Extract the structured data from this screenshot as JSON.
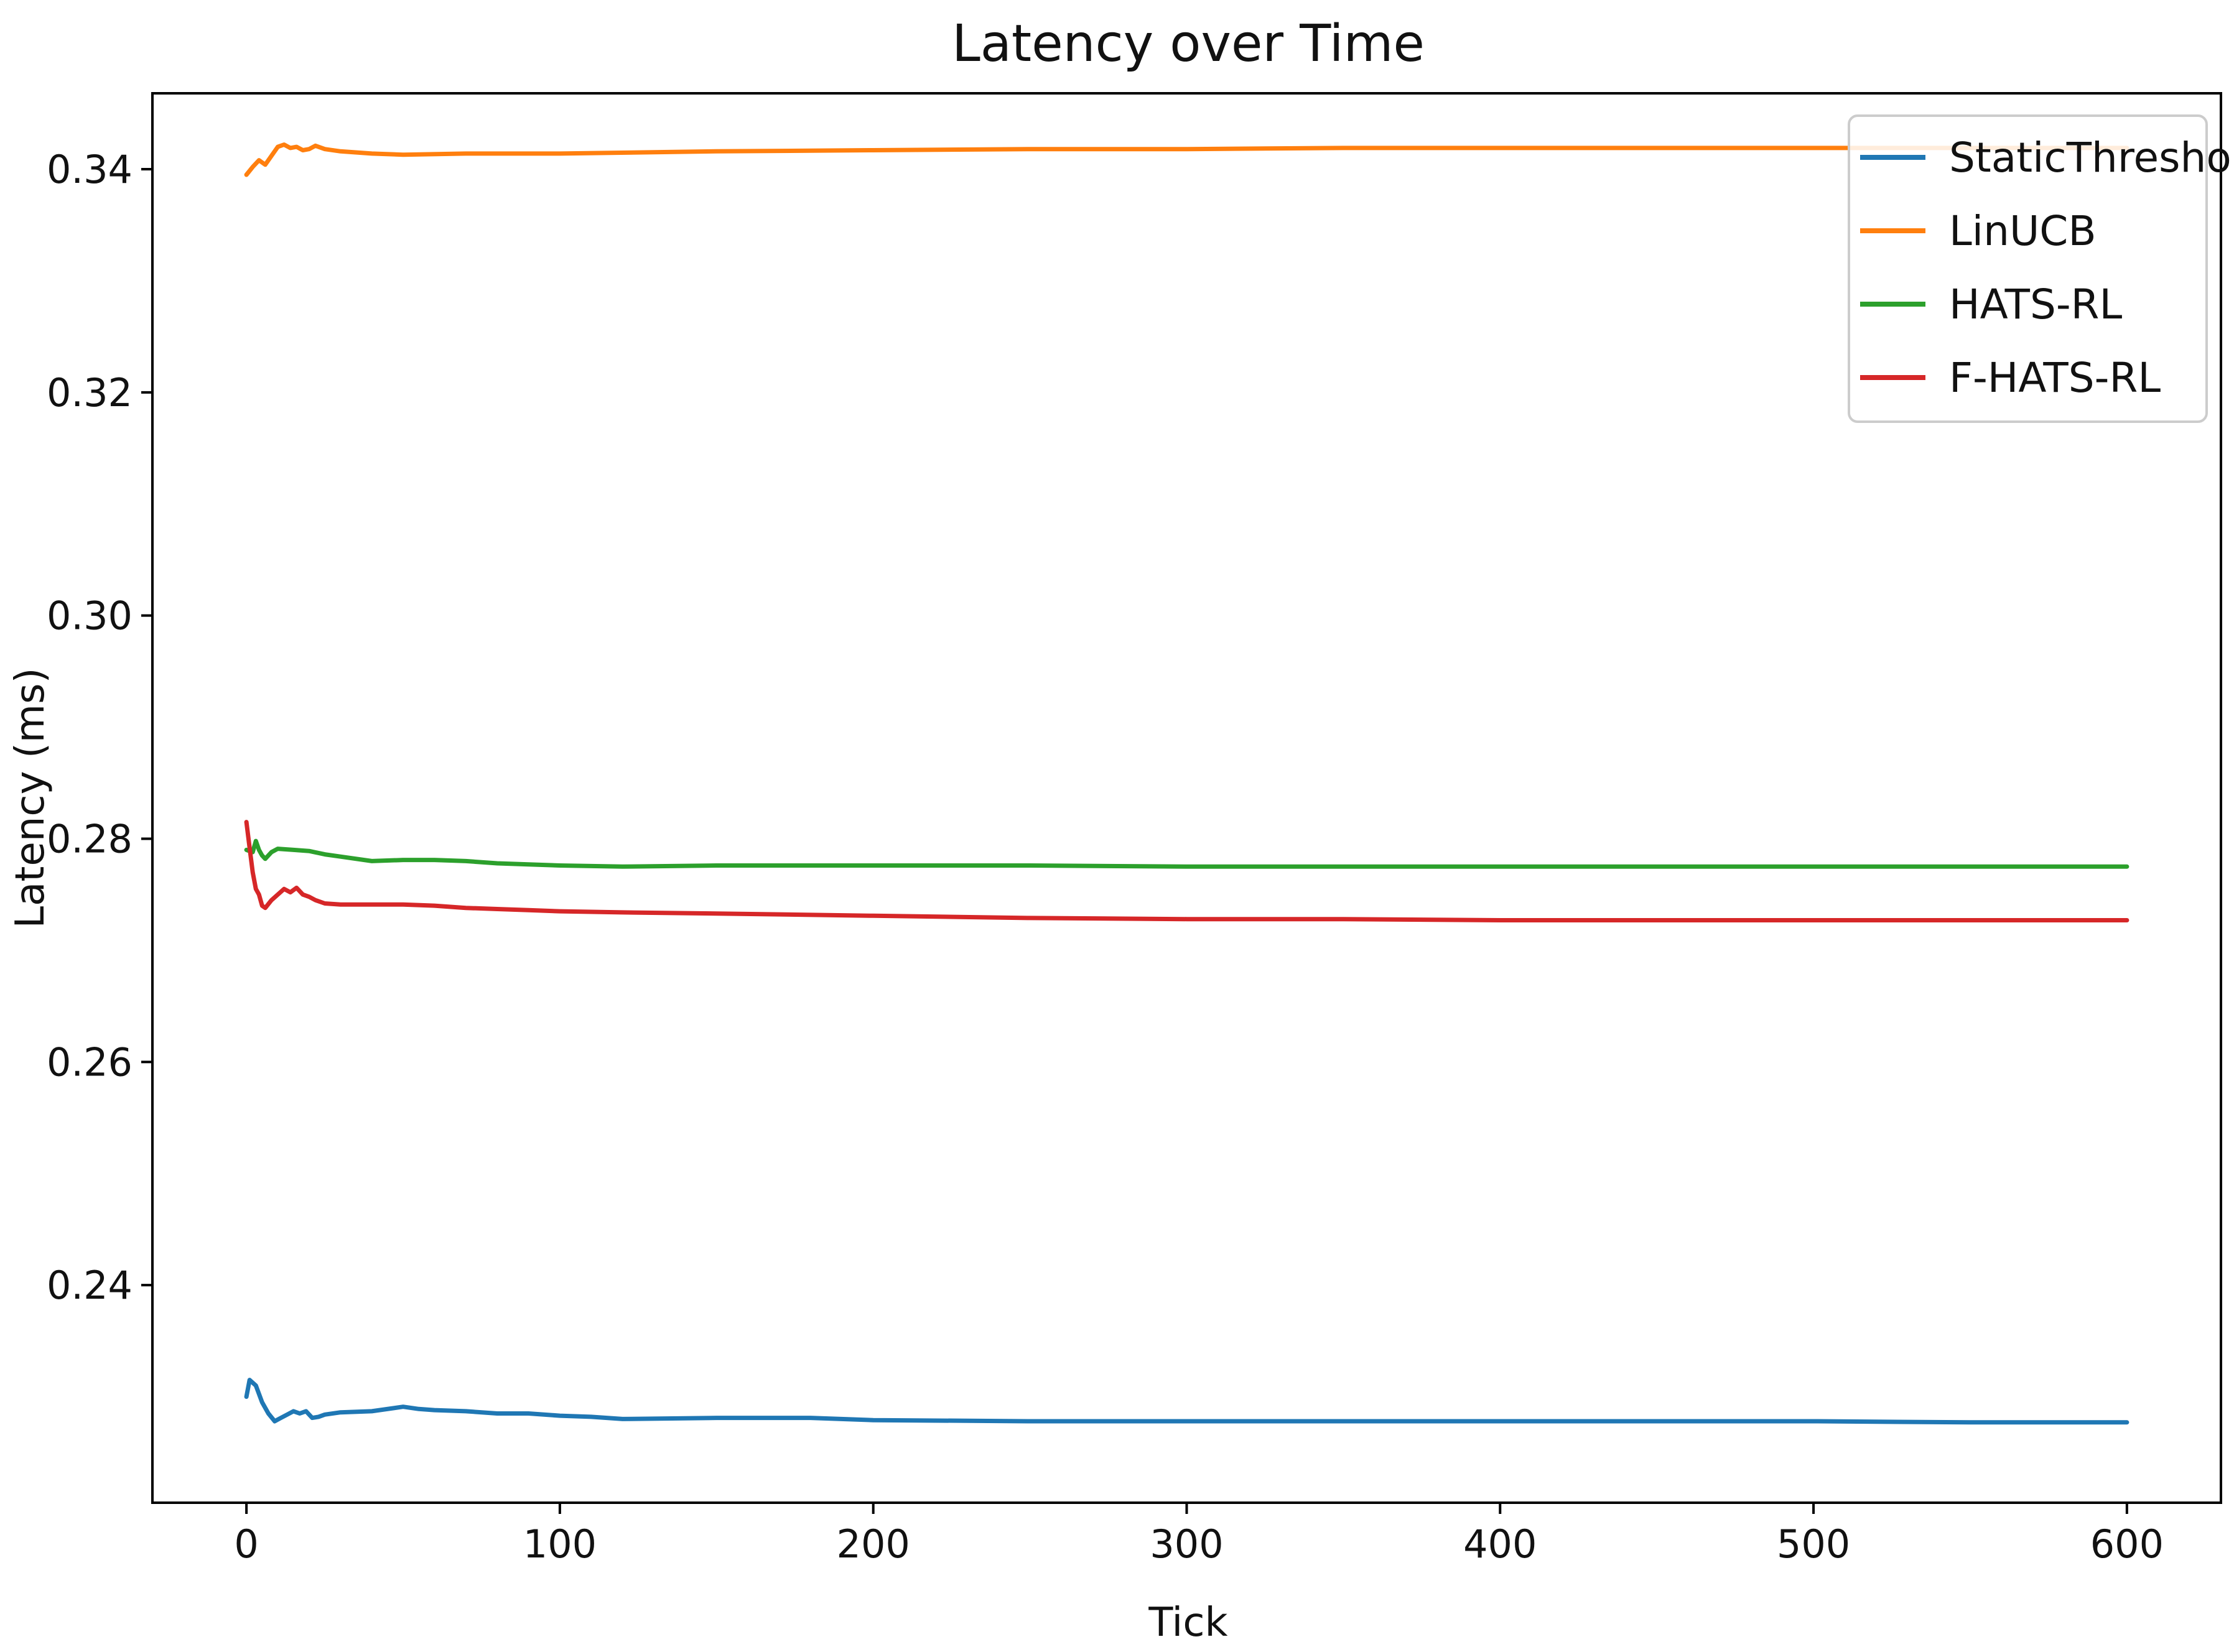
{
  "chart_data": {
    "type": "line",
    "title": "Latency over Time",
    "xlabel": "Tick",
    "ylabel": "Latency (ms)",
    "xlim": [
      -30,
      630
    ],
    "ylim": [
      0.2205,
      0.3468
    ],
    "xticks": [
      0,
      100,
      200,
      300,
      400,
      500,
      600
    ],
    "yticks": [
      0.24,
      0.26,
      0.28,
      0.3,
      0.32,
      0.34
    ],
    "xtick_labels": [
      "0",
      "100",
      "200",
      "300",
      "400",
      "500",
      "600"
    ],
    "ytick_labels": [
      "0.24",
      "0.26",
      "0.28",
      "0.30",
      "0.32",
      "0.34"
    ],
    "grid": false,
    "legend_position": "top-right",
    "series": [
      {
        "name": "StaticThreshold",
        "color": "#1f77b4",
        "points": [
          [
            0,
            0.23
          ],
          [
            1,
            0.2315
          ],
          [
            3,
            0.231
          ],
          [
            5,
            0.2295
          ],
          [
            7,
            0.2285
          ],
          [
            9,
            0.2278
          ],
          [
            11,
            0.2281
          ],
          [
            13,
            0.2284
          ],
          [
            15,
            0.2287
          ],
          [
            17,
            0.2285
          ],
          [
            19,
            0.2287
          ],
          [
            21,
            0.2281
          ],
          [
            23,
            0.2282
          ],
          [
            25,
            0.2284
          ],
          [
            30,
            0.2286
          ],
          [
            40,
            0.2287
          ],
          [
            50,
            0.2291
          ],
          [
            55,
            0.2289
          ],
          [
            60,
            0.2288
          ],
          [
            70,
            0.2287
          ],
          [
            80,
            0.2285
          ],
          [
            90,
            0.2285
          ],
          [
            100,
            0.2283
          ],
          [
            110,
            0.2282
          ],
          [
            120,
            0.228
          ],
          [
            150,
            0.2281
          ],
          [
            180,
            0.2281
          ],
          [
            200,
            0.2279
          ],
          [
            250,
            0.2278
          ],
          [
            300,
            0.2278
          ],
          [
            350,
            0.2278
          ],
          [
            400,
            0.2278
          ],
          [
            450,
            0.2278
          ],
          [
            500,
            0.2278
          ],
          [
            550,
            0.2277
          ],
          [
            600,
            0.2277
          ]
        ]
      },
      {
        "name": "LinUCB",
        "color": "#ff7f0e",
        "points": [
          [
            0,
            0.3395
          ],
          [
            2,
            0.3402
          ],
          [
            4,
            0.3408
          ],
          [
            6,
            0.3404
          ],
          [
            8,
            0.3412
          ],
          [
            10,
            0.342
          ],
          [
            12,
            0.3422
          ],
          [
            14,
            0.3419
          ],
          [
            16,
            0.342
          ],
          [
            18,
            0.3417
          ],
          [
            20,
            0.3418
          ],
          [
            22,
            0.3421
          ],
          [
            25,
            0.3418
          ],
          [
            30,
            0.3416
          ],
          [
            40,
            0.3414
          ],
          [
            50,
            0.3413
          ],
          [
            70,
            0.3414
          ],
          [
            100,
            0.3414
          ],
          [
            150,
            0.3416
          ],
          [
            200,
            0.3417
          ],
          [
            250,
            0.3418
          ],
          [
            300,
            0.3418
          ],
          [
            350,
            0.3419
          ],
          [
            400,
            0.3419
          ],
          [
            450,
            0.3419
          ],
          [
            500,
            0.3419
          ],
          [
            550,
            0.3419
          ],
          [
            600,
            0.3419
          ]
        ]
      },
      {
        "name": "HATS-RL",
        "color": "#2ca02c",
        "points": [
          [
            0,
            0.279
          ],
          [
            2,
            0.2788
          ],
          [
            3,
            0.2798
          ],
          [
            4,
            0.279
          ],
          [
            5,
            0.2785
          ],
          [
            6,
            0.2782
          ],
          [
            8,
            0.2788
          ],
          [
            10,
            0.2791
          ],
          [
            15,
            0.279
          ],
          [
            20,
            0.2789
          ],
          [
            25,
            0.2786
          ],
          [
            30,
            0.2784
          ],
          [
            40,
            0.278
          ],
          [
            50,
            0.2781
          ],
          [
            60,
            0.2781
          ],
          [
            70,
            0.278
          ],
          [
            80,
            0.2778
          ],
          [
            90,
            0.2777
          ],
          [
            100,
            0.2776
          ],
          [
            120,
            0.2775
          ],
          [
            150,
            0.2776
          ],
          [
            200,
            0.2776
          ],
          [
            250,
            0.2776
          ],
          [
            300,
            0.2775
          ],
          [
            350,
            0.2775
          ],
          [
            400,
            0.2775
          ],
          [
            450,
            0.2775
          ],
          [
            500,
            0.2775
          ],
          [
            550,
            0.2775
          ],
          [
            600,
            0.2775
          ]
        ]
      },
      {
        "name": "F-HATS-RL",
        "color": "#d62728",
        "points": [
          [
            0,
            0.2815
          ],
          [
            1,
            0.2792
          ],
          [
            2,
            0.277
          ],
          [
            3,
            0.2755
          ],
          [
            4,
            0.275
          ],
          [
            5,
            0.274
          ],
          [
            6,
            0.2738
          ],
          [
            8,
            0.2745
          ],
          [
            10,
            0.275
          ],
          [
            12,
            0.2755
          ],
          [
            14,
            0.2752
          ],
          [
            16,
            0.2756
          ],
          [
            18,
            0.275
          ],
          [
            20,
            0.2748
          ],
          [
            22,
            0.2745
          ],
          [
            25,
            0.2742
          ],
          [
            30,
            0.2741
          ],
          [
            40,
            0.2741
          ],
          [
            50,
            0.2741
          ],
          [
            60,
            0.274
          ],
          [
            70,
            0.2738
          ],
          [
            80,
            0.2737
          ],
          [
            90,
            0.2736
          ],
          [
            100,
            0.2735
          ],
          [
            120,
            0.2734
          ],
          [
            150,
            0.2733
          ],
          [
            200,
            0.2731
          ],
          [
            250,
            0.2729
          ],
          [
            300,
            0.2728
          ],
          [
            350,
            0.2728
          ],
          [
            400,
            0.2727
          ],
          [
            450,
            0.2727
          ],
          [
            500,
            0.2727
          ],
          [
            550,
            0.2727
          ],
          [
            600,
            0.2727
          ]
        ]
      }
    ]
  }
}
